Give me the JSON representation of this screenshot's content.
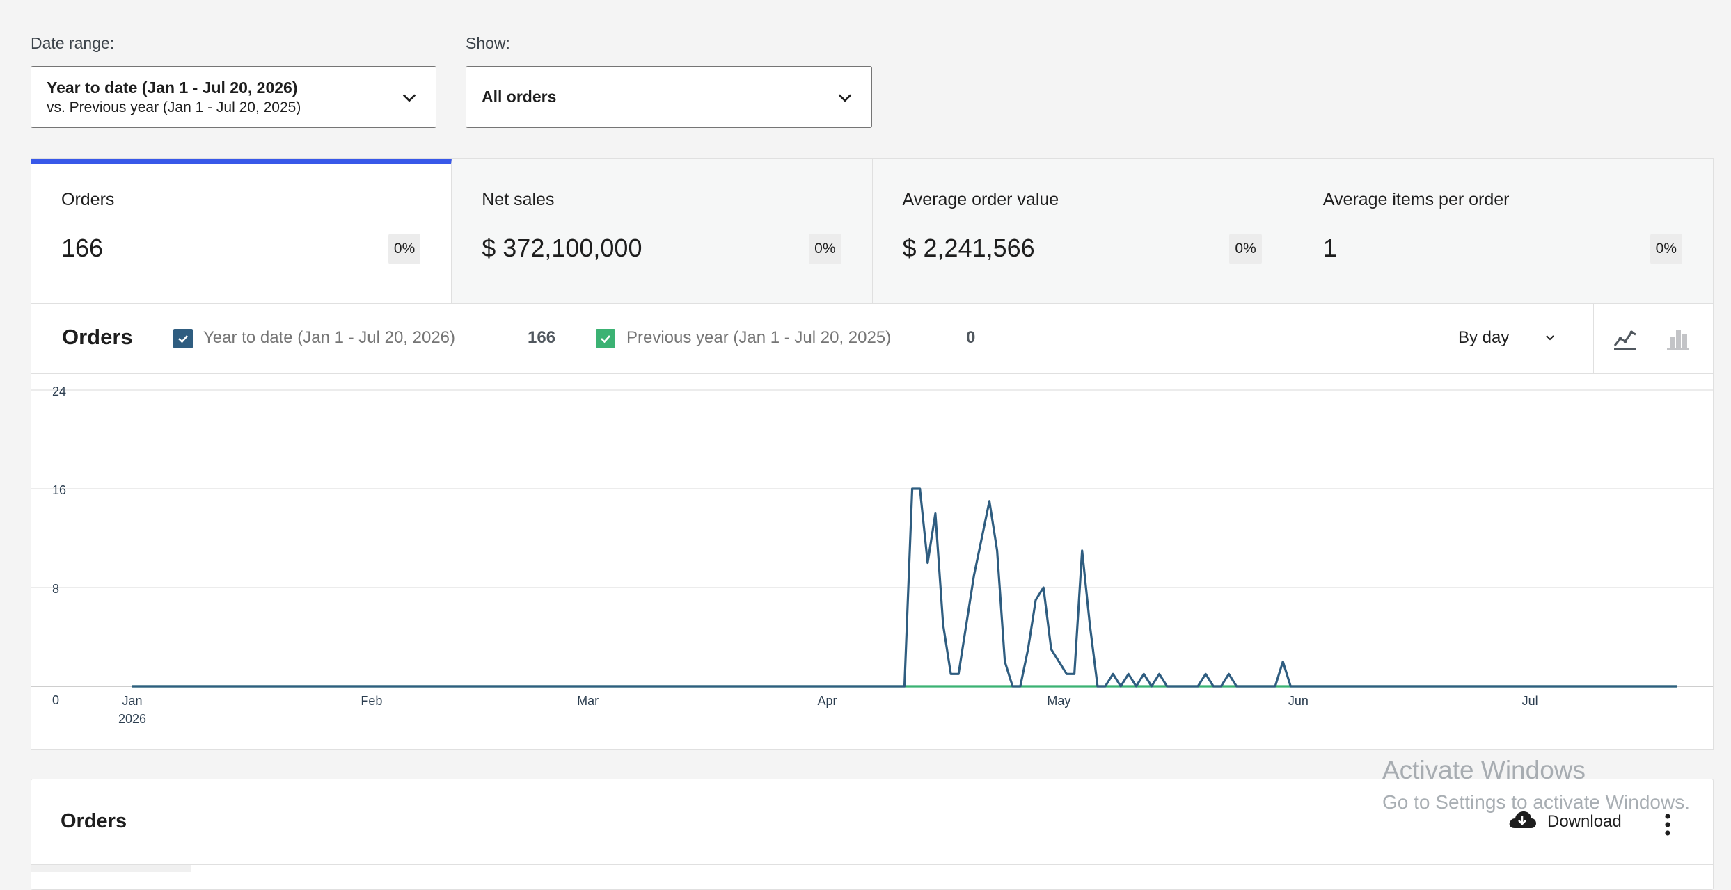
{
  "filters": {
    "date_range_label": "Date range:",
    "date_range_line1": "Year to date (Jan 1 - Jul 20, 2026)",
    "date_range_line2": "vs. Previous year (Jan 1 - Jul 20, 2025)",
    "show_label": "Show:",
    "show_value": "All orders"
  },
  "summary": [
    {
      "title": "Orders",
      "value": "166",
      "delta": "0%",
      "active": true
    },
    {
      "title": "Net sales",
      "value": "$ 372,100,000",
      "delta": "0%",
      "active": false
    },
    {
      "title": "Average order value",
      "value": "$ 2,241,566",
      "delta": "0%",
      "active": false
    },
    {
      "title": "Average items per order",
      "value": "1",
      "delta": "0%",
      "active": false
    }
  ],
  "chart_header": {
    "title": "Orders",
    "legend": [
      {
        "label": "Year to date (Jan 1 - Jul 20, 2026)",
        "value": "166",
        "color": "#2f5d80"
      },
      {
        "label": "Previous year (Jan 1 - Jul 20, 2025)",
        "value": "0",
        "color": "#3bb273"
      }
    ],
    "interval": "By day",
    "chart_type_icons": [
      "line-chart-icon",
      "bar-chart-icon"
    ]
  },
  "chart_data": {
    "type": "line",
    "ylim": [
      0,
      24
    ],
    "yticks": [
      "0",
      "8",
      "16",
      "24"
    ],
    "xticks": [
      {
        "label": "Jan",
        "sub": "2026",
        "date": "2026-01-01"
      },
      {
        "label": "Feb",
        "sub": "",
        "date": "2026-02-01"
      },
      {
        "label": "Mar",
        "sub": "",
        "date": "2026-03-01"
      },
      {
        "label": "Apr",
        "sub": "",
        "date": "2026-04-01"
      },
      {
        "label": "May",
        "sub": "",
        "date": "2026-05-01"
      },
      {
        "label": "Jun",
        "sub": "",
        "date": "2026-06-01"
      },
      {
        "label": "Jul",
        "sub": "",
        "date": "2026-07-01"
      }
    ],
    "x_range": [
      "2026-01-01",
      "2026-07-20"
    ],
    "series": [
      {
        "name": "Year to date (Jan 1 - Jul 20, 2026)",
        "color": "#2f5d80",
        "points": [
          [
            "2026-01-01",
            0
          ],
          [
            "2026-04-11",
            0
          ],
          [
            "2026-04-12",
            16
          ],
          [
            "2026-04-13",
            16
          ],
          [
            "2026-04-14",
            10
          ],
          [
            "2026-04-15",
            14
          ],
          [
            "2026-04-16",
            5
          ],
          [
            "2026-04-17",
            1
          ],
          [
            "2026-04-18",
            1
          ],
          [
            "2026-04-19",
            5
          ],
          [
            "2026-04-20",
            9
          ],
          [
            "2026-04-21",
            12
          ],
          [
            "2026-04-22",
            15
          ],
          [
            "2026-04-23",
            11
          ],
          [
            "2026-04-24",
            2
          ],
          [
            "2026-04-25",
            0
          ],
          [
            "2026-04-26",
            0
          ],
          [
            "2026-04-27",
            3
          ],
          [
            "2026-04-28",
            7
          ],
          [
            "2026-04-29",
            8
          ],
          [
            "2026-04-30",
            3
          ],
          [
            "2026-05-01",
            2
          ],
          [
            "2026-05-02",
            1
          ],
          [
            "2026-05-03",
            1
          ],
          [
            "2026-05-04",
            11
          ],
          [
            "2026-05-05",
            5
          ],
          [
            "2026-05-06",
            0
          ],
          [
            "2026-05-07",
            0
          ],
          [
            "2026-05-08",
            1
          ],
          [
            "2026-05-09",
            0
          ],
          [
            "2026-05-10",
            1
          ],
          [
            "2026-05-11",
            0
          ],
          [
            "2026-05-12",
            1
          ],
          [
            "2026-05-13",
            0
          ],
          [
            "2026-05-14",
            1
          ],
          [
            "2026-05-15",
            0
          ],
          [
            "2026-05-18",
            0
          ],
          [
            "2026-05-19",
            0
          ],
          [
            "2026-05-20",
            1
          ],
          [
            "2026-05-21",
            0
          ],
          [
            "2026-05-22",
            0
          ],
          [
            "2026-05-23",
            1
          ],
          [
            "2026-05-24",
            0
          ],
          [
            "2026-05-29",
            0
          ],
          [
            "2026-05-30",
            2
          ],
          [
            "2026-05-31",
            0
          ],
          [
            "2026-07-20",
            0
          ]
        ]
      },
      {
        "name": "Previous year (Jan 1 - Jul 20, 2025)",
        "color": "#3bb273",
        "points": [
          [
            "2026-01-01",
            0
          ],
          [
            "2026-07-20",
            0
          ]
        ]
      }
    ]
  },
  "table_panel": {
    "title": "Orders",
    "download_label": "Download"
  },
  "watermark": {
    "line1": "Activate Windows",
    "line2": "Go to Settings to activate Windows."
  }
}
